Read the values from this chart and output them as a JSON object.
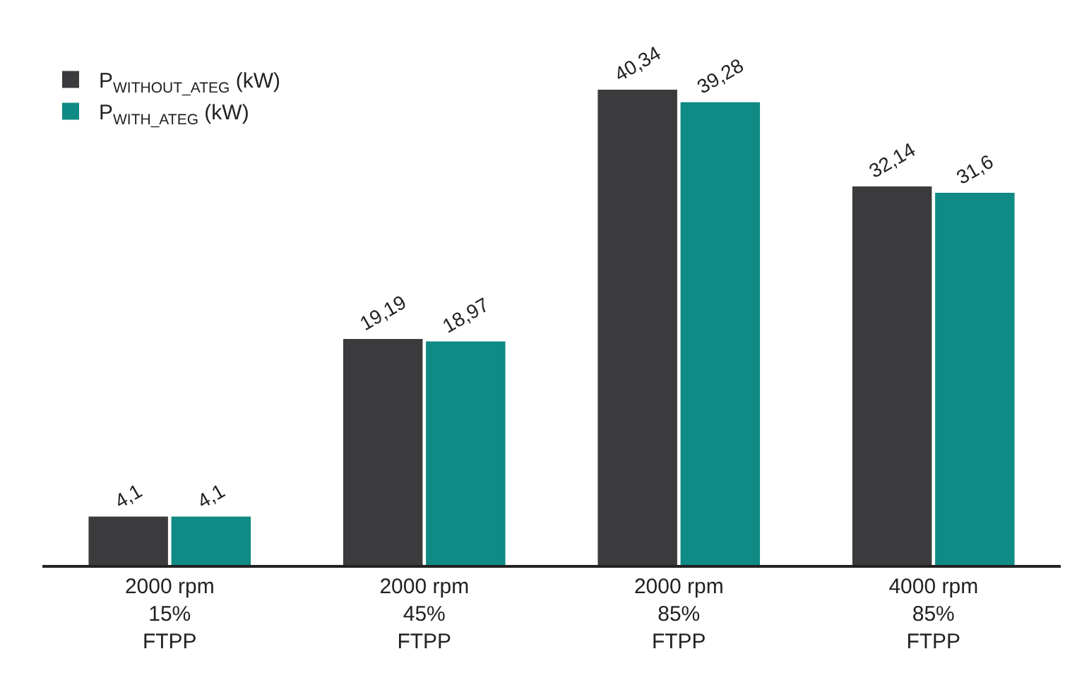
{
  "chart_data": {
    "type": "bar",
    "categories": [
      "2000 rpm\n15%\nFTPP",
      "2000 rpm\n45%\nFTPP",
      "2000 rpm\n85%\nFTPP",
      "4000 rpm\n85%\nFTPP"
    ],
    "series": [
      {
        "name": "P$_{WITHOUT_ATEG}$ (kW)",
        "color": "#3b3a3d",
        "values": [
          4.1,
          19.19,
          40.34,
          32.14
        ],
        "value_labels": [
          "4,1",
          "19,19",
          "40,34",
          "32,14"
        ]
      },
      {
        "name": "P$_{WITH_ATEG}$ (kW)",
        "color": "#0f8a84",
        "values": [
          4.1,
          18.97,
          39.28,
          31.6
        ],
        "value_labels": [
          "4,1",
          "18,97",
          "39,28",
          "31,6"
        ]
      }
    ],
    "legend": "top left"
  }
}
